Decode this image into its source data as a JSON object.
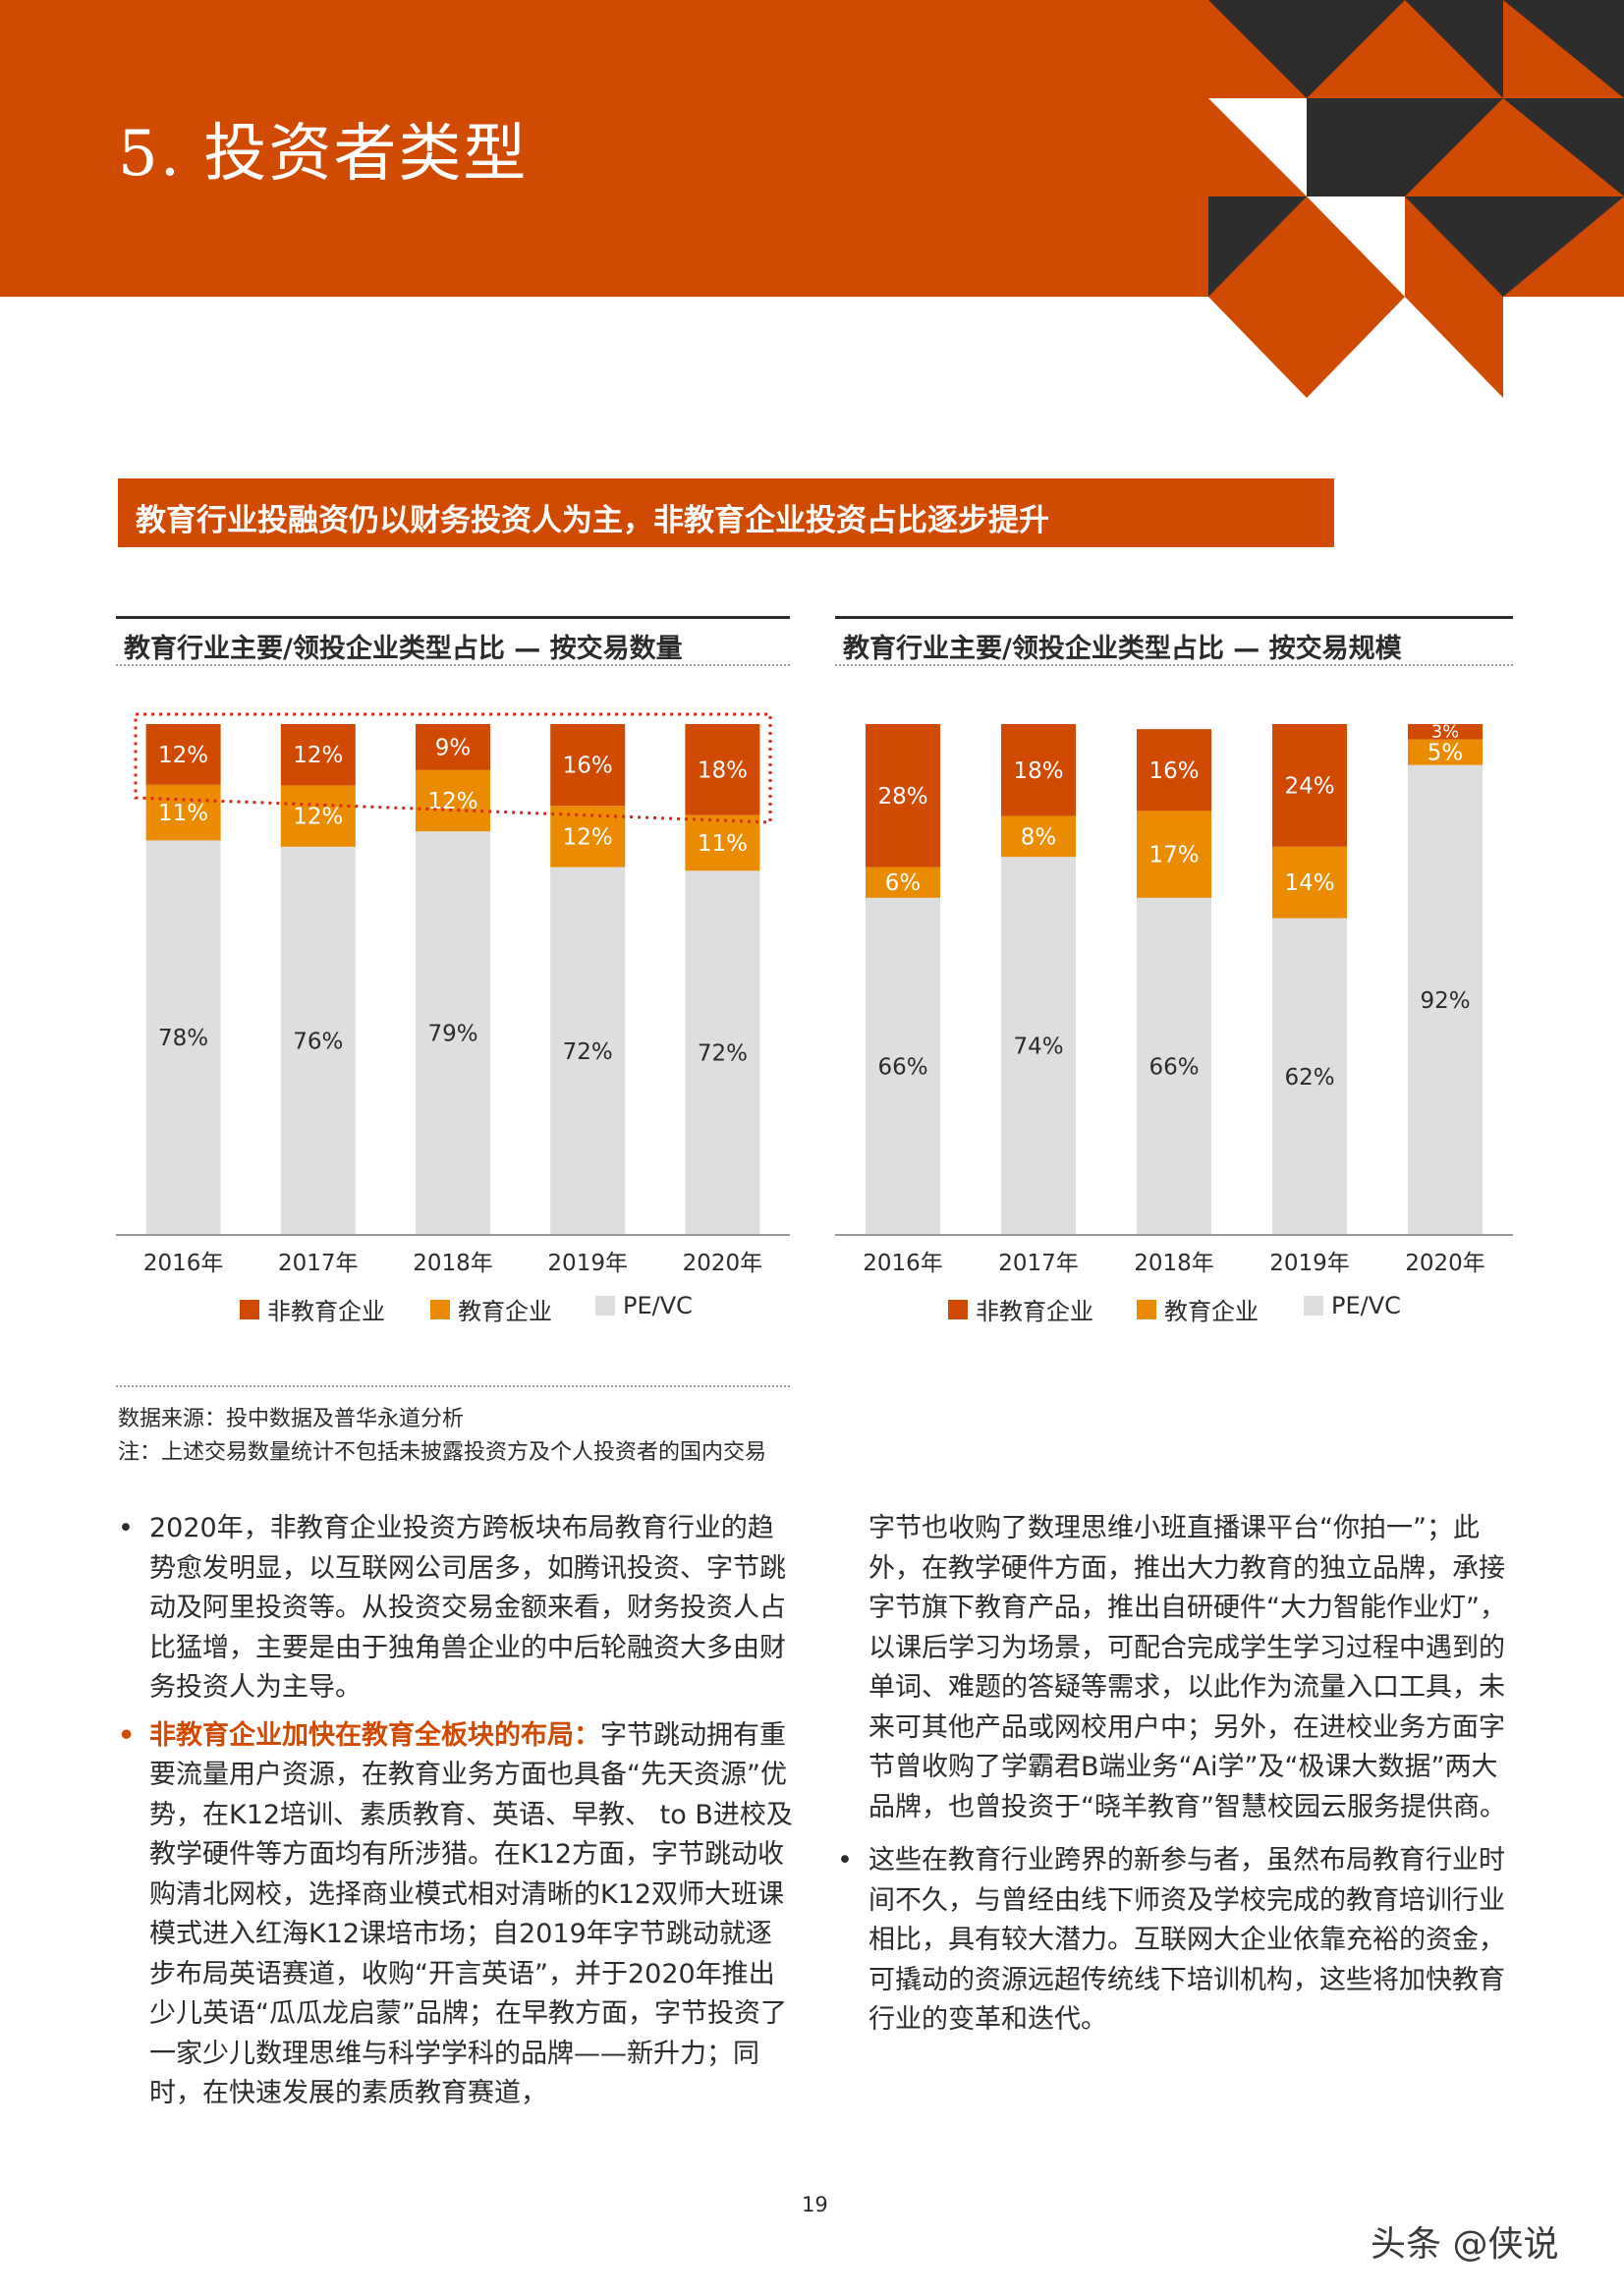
{
  "header": {
    "title": "5. 投资者类型"
  },
  "subtitle": "教育行业投融资仍以财务投资人为主，非教育企业投资占比逐步提升",
  "colors": {
    "orange": "#d04a02",
    "amber": "#eb8c00",
    "grey": "#dedede",
    "dark": "#2d2d2d"
  },
  "chart_data": [
    {
      "type": "bar",
      "stacked": true,
      "title": "教育行业主要/领投企业类型占比 — 按交易数量",
      "categories": [
        "2016年",
        "2017年",
        "2018年",
        "2019年",
        "2020年"
      ],
      "series": [
        {
          "name": "PE/VC",
          "values": [
            78,
            76,
            79,
            72,
            72
          ],
          "labels": [
            "78%",
            "76%",
            "79%",
            "72%",
            "72%"
          ]
        },
        {
          "name": "教育企业",
          "values": [
            11,
            12,
            12,
            12,
            11
          ],
          "labels": [
            "11%",
            "12%",
            "12%",
            "12%",
            "11%"
          ]
        },
        {
          "name": "非教育企业",
          "values": [
            12,
            12,
            9,
            16,
            18
          ],
          "labels": [
            "12%",
            "12%",
            "9%",
            "16%",
            "18%"
          ]
        }
      ],
      "ylim": [
        0,
        100
      ],
      "highlight_box": true
    },
    {
      "type": "bar",
      "stacked": true,
      "title": "教育行业主要/领投企业类型占比 — 按交易规模",
      "categories": [
        "2016年",
        "2017年",
        "2018年",
        "2019年",
        "2020年"
      ],
      "series": [
        {
          "name": "PE/VC",
          "values": [
            66,
            74,
            66,
            62,
            92
          ],
          "labels": [
            "66%",
            "74%",
            "66%",
            "62%",
            "92%"
          ]
        },
        {
          "name": "教育企业",
          "values": [
            6,
            8,
            17,
            14,
            5
          ],
          "labels": [
            "6%",
            "8%",
            "17%",
            "14%",
            "5%"
          ]
        },
        {
          "name": "非教育企业",
          "values": [
            28,
            18,
            16,
            24,
            3
          ],
          "labels": [
            "28%",
            "18%",
            "16%",
            "24%",
            "3%"
          ]
        }
      ],
      "ylim": [
        0,
        100
      ],
      "highlight_box": false
    }
  ],
  "legend": [
    "非教育企业",
    "教育企业",
    "PE/VC"
  ],
  "source": {
    "line1": "数据来源：投中数据及普华永道分析",
    "line2": "注：上述交易数量统计不包括未披露投资方及个人投资者的国内交易"
  },
  "body": {
    "p1": "2020年，非教育企业投资方跨板块布局教育行业的趋势愈发明显，以互联网公司居多，如腾讯投资、字节跳动及阿里投资等。从投资交易金额来看，财务投资人占比猛增，主要是由于独角兽企业的中后轮融资大多由财务投资人为主导。",
    "p2_highlight": "非教育企业加快在教育全板块的布局：",
    "p2": "字节跳动拥有重要流量用户资源，在教育业务方面也具备“先天资源”优势，在K12培训、素质教育、英语、早教、 to B进校及教学硬件等方面均有所涉猎。在K12方面，字节跳动收购清北网校，选择商业模式相对清晰的K12双师大班课模式进入红海K12课培市场；自2019年字节跳动就逐步布局英语赛道，收购“开言英语”，并于2020年推出少儿英语“瓜瓜龙启蒙”品牌；在早教方面，字节投资了一家少儿数理思维与科学学科的品牌——新升力；同时，在快速发展的素质教育赛道，",
    "p2_cont": "字节也收购了数理思维小班直播课平台“你拍一”；此外，在教学硬件方面，推出大力教育的独立品牌，承接字节旗下教育产品，推出自研硬件“大力智能作业灯”，以课后学习为场景，可配合完成学生学习过程中遇到的单词、难题的答疑等需求，以此作为流量入口工具，未来可其他产品或网校用户中；另外，在进校业务方面字节曾收购了学霸君B端业务“Ai学”及“极课大数据”两大品牌，也曾投资于“晓羊教育”智慧校园云服务提供商。",
    "p3": "这些在教育行业跨界的新参与者，虽然布局教育行业时间不久，与曾经由线下师资及学校完成的教育培训行业相比，具有较大潜力。互联网大企业依靠充裕的资金，可撬动的资源远超传统线下培训机构，这些将加快教育行业的变革和迭代。",
    "bullet": "•"
  },
  "footer": {
    "page": "19",
    "watermark": "头条 @侠说"
  }
}
